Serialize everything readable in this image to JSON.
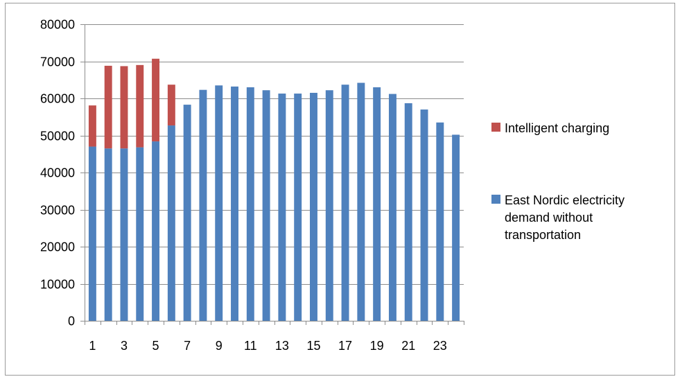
{
  "chart_data": {
    "type": "bar",
    "stacked": true,
    "title": "",
    "xlabel": "",
    "ylabel": "",
    "ylim": [
      0,
      80000
    ],
    "y_ticks": [
      0,
      10000,
      20000,
      30000,
      40000,
      50000,
      60000,
      70000,
      80000
    ],
    "y_tick_labels": [
      "0",
      "10000",
      "20000",
      "30000",
      "40000",
      "50000",
      "60000",
      "70000",
      "80000"
    ],
    "categories": [
      "1",
      "2",
      "3",
      "4",
      "5",
      "6",
      "7",
      "8",
      "9",
      "10",
      "11",
      "12",
      "13",
      "14",
      "15",
      "16",
      "17",
      "18",
      "19",
      "20",
      "21",
      "22",
      "23",
      "24"
    ],
    "x_tick_labels": [
      "1",
      "3",
      "5",
      "7",
      "9",
      "11",
      "13",
      "15",
      "17",
      "19",
      "21",
      "23"
    ],
    "grid": "horizontal",
    "legend_position": "right",
    "series": [
      {
        "name": "East Nordic electricity demand without transportation",
        "legend_lines": [
          "East Nordic electricity",
          "demand without",
          "transportation"
        ],
        "color": "#4F81BD",
        "values": [
          47000,
          46500,
          46500,
          46800,
          48400,
          52700,
          58300,
          62300,
          63500,
          63200,
          63000,
          62200,
          61300,
          61300,
          61500,
          62200,
          63700,
          64200,
          63000,
          61200,
          58700,
          57000,
          53500,
          50200
        ]
      },
      {
        "name": "Intelligent charging",
        "legend_lines": [
          "Intelligent charging"
        ],
        "color": "#C0504D",
        "values": [
          11100,
          22300,
          22200,
          22200,
          22300,
          11000,
          0,
          0,
          0,
          0,
          0,
          0,
          0,
          0,
          0,
          0,
          0,
          0,
          0,
          0,
          0,
          0,
          0,
          0
        ]
      }
    ]
  }
}
